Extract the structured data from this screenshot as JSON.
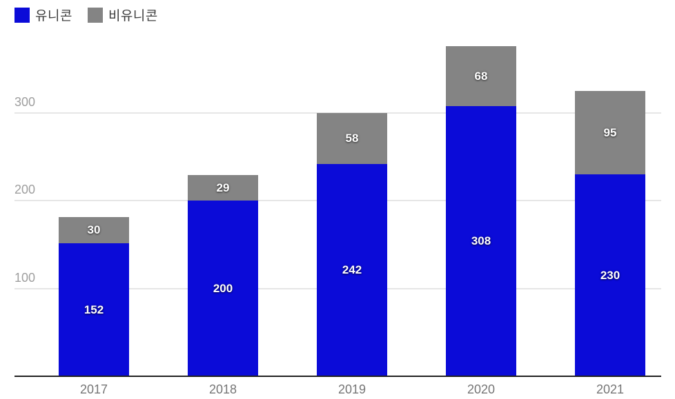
{
  "legend": {
    "items": [
      {
        "label": "유니콘",
        "color": "#0b0bd8"
      },
      {
        "label": "비유니콘",
        "color": "#848484"
      }
    ]
  },
  "chart_data": {
    "type": "bar",
    "stacked": true,
    "title": "",
    "xlabel": "",
    "ylabel": "",
    "categories": [
      "2017",
      "2018",
      "2019",
      "2020",
      "2021"
    ],
    "series": [
      {
        "name": "유니콘",
        "color": "#0b0bd8",
        "values": [
          152,
          200,
          242,
          308,
          230
        ]
      },
      {
        "name": "비유니콘",
        "color": "#848484",
        "values": [
          30,
          29,
          58,
          68,
          95
        ]
      }
    ],
    "totals": [
      182,
      229,
      300,
      376,
      325
    ],
    "yticks": [
      100,
      200,
      300
    ],
    "ylim": [
      0,
      380
    ],
    "grid": true,
    "legend_position": "top-left",
    "annotations": "white bold value centered inside each segment"
  },
  "colors": {
    "series_unicorn": "#0b0bd8",
    "series_non_unicorn": "#848484",
    "gridline": "#e6e6e6",
    "axis_line": "#1f1f1f",
    "ytick_text": "#9e9e9e",
    "xtick_text": "#757575",
    "legend_text": "#3c3c3c",
    "annotation_text": "#ffffff",
    "background": "#ffffff"
  }
}
